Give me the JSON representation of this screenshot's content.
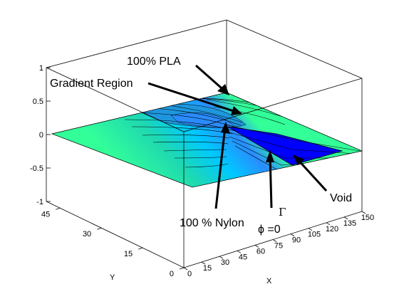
{
  "chart_data": {
    "type": "surface-contour-3d",
    "title": "",
    "xlabel": "X",
    "ylabel": "Y",
    "zlabel": "",
    "xlim": [
      0,
      150
    ],
    "ylim": [
      0,
      50
    ],
    "zlim": [
      -1,
      1
    ],
    "x_ticks": [
      "0",
      "15",
      "30",
      "45",
      "60",
      "75",
      "90",
      "105",
      "120",
      "135",
      "150"
    ],
    "y_ticks": [
      "0",
      "15",
      "30",
      "45"
    ],
    "z_ticks": [
      "-1",
      "-0.5",
      "0",
      "0.5",
      "1"
    ],
    "surface_z": 0,
    "field": "phi",
    "field_range": [
      -1,
      1
    ],
    "colormap": [
      "#0000ff",
      "#2a8cff",
      "#00c8ff",
      "#1fd9b0",
      "#33ff99"
    ],
    "grid": false,
    "annotations": {
      "pla": "100% PLA",
      "gradient": "Gradient Region",
      "nylon": "100 % Nylon",
      "gamma": "Γ",
      "phi": "ϕ =0",
      "void": "Void"
    }
  }
}
